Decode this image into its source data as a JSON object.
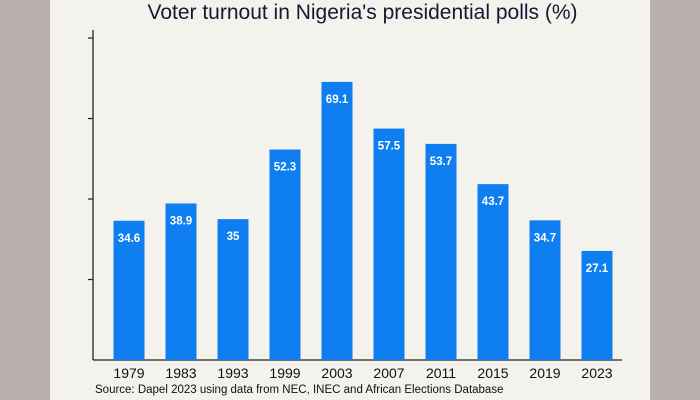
{
  "colors": {
    "bar": "#0f7ef0",
    "side_band": "#b9b1ae",
    "background": "#f4f2ec",
    "title": "#121a33"
  },
  "chart_data": {
    "type": "bar",
    "title": "Voter turnout in Nigeria's presidential polls (%)",
    "source": "Source: Dapel 2023 using data from NEC, INEC and African Elections Database",
    "categories": [
      "1979",
      "1983",
      "1993",
      "1999",
      "2003",
      "2007",
      "2011",
      "2015",
      "2019",
      "2023"
    ],
    "values": [
      34.6,
      38.9,
      35,
      52.3,
      69.1,
      57.5,
      53.7,
      43.7,
      34.7,
      27.1
    ],
    "labels": [
      "34.6",
      "38.9",
      "35",
      "52.3",
      "69.1",
      "57.5",
      "53.7",
      "43.7",
      "34.7",
      "27.1"
    ],
    "ylim": [
      0,
      82
    ],
    "yticks": [
      20,
      40,
      60,
      80
    ],
    "ytick_labels_shown": false,
    "grid": false,
    "legend": "none"
  }
}
